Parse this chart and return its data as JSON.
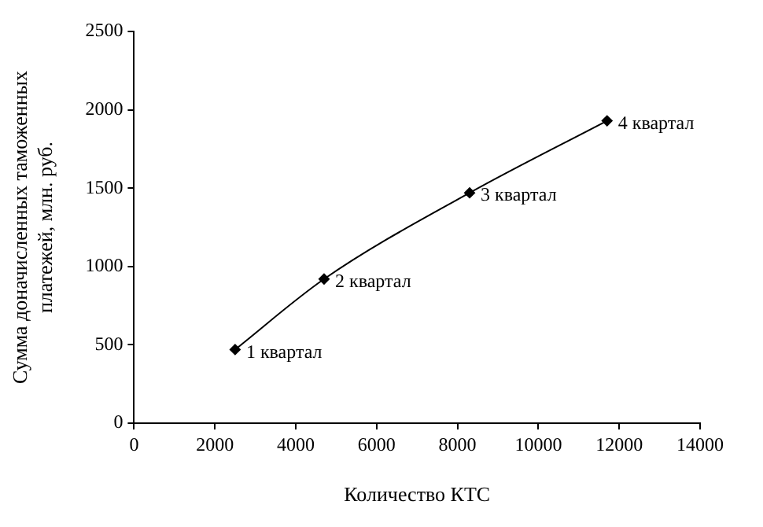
{
  "chart_data": {
    "type": "line",
    "xlabel": "Количество КТС",
    "ylabel": "Сумма доначисленных таможенных\nплатежей, млн. руб.",
    "x": [
      2500,
      4700,
      8300,
      11700
    ],
    "series": [
      {
        "color": "#000000",
        "values": [
          470,
          920,
          1470,
          1930
        ]
      }
    ],
    "xlim": [
      0,
      14000
    ],
    "xticks": [
      0,
      2000,
      4000,
      6000,
      8000,
      10000,
      12000,
      14000
    ],
    "ylim": [
      0,
      2500
    ],
    "yticks": [
      0,
      500,
      1000,
      1500,
      2000,
      2500
    ],
    "grid": false,
    "legend": false,
    "marker": "diamond",
    "line_style": "solid",
    "annotations": [
      {
        "text": "1 квартал",
        "x": 2500,
        "y": 470
      },
      {
        "text": "2 квартал",
        "x": 4700,
        "y": 920
      },
      {
        "text": "3 квартал",
        "x": 8300,
        "y": 1470
      },
      {
        "text": "4 квартал",
        "x": 11700,
        "y": 1930
      }
    ]
  }
}
